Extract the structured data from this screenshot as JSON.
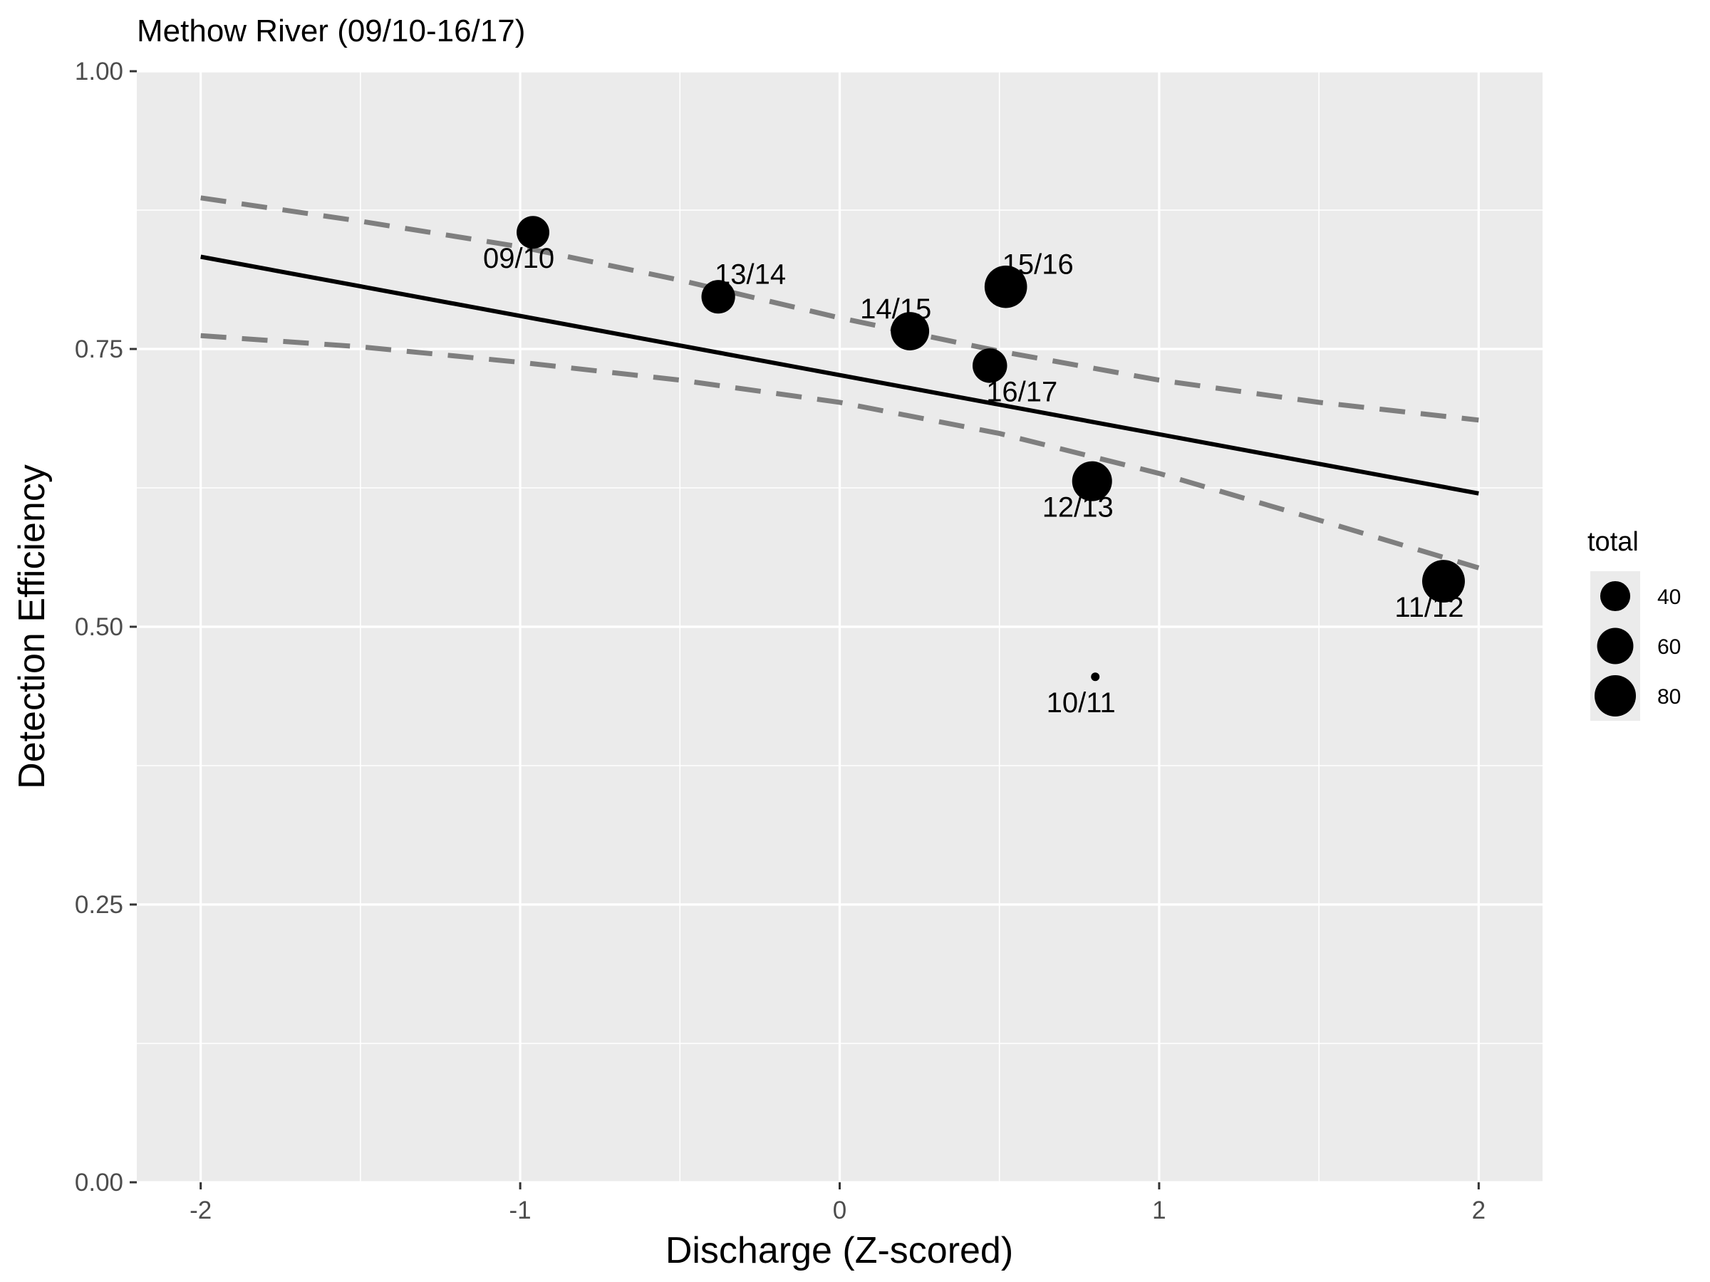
{
  "chart_data": {
    "type": "scatter",
    "title": "Methow River (09/10-16/17)",
    "xlabel": "Discharge (Z-scored)",
    "ylabel": "Detection Efficiency",
    "xlim": [
      -2.2,
      2.2
    ],
    "ylim": [
      0,
      1
    ],
    "x_ticks": [
      -2,
      -1,
      0,
      1,
      2
    ],
    "x_tick_labels": [
      "-2",
      "-1",
      "0",
      "1",
      "2"
    ],
    "y_ticks": [
      0,
      0.25,
      0.5,
      0.75,
      1
    ],
    "y_tick_labels": [
      "0.00",
      "0.25",
      "0.50",
      "0.75",
      "1.00"
    ],
    "x_minor": [
      -1.5,
      -0.5,
      0.5,
      1.5
    ],
    "y_minor": [
      0.125,
      0.375,
      0.625,
      0.875
    ],
    "grid": true,
    "points": [
      {
        "label": "09/10",
        "x": -0.96,
        "y": 0.855,
        "total": 48,
        "label_position": "below-left"
      },
      {
        "label": "13/14",
        "x": -0.38,
        "y": 0.797,
        "total": 51,
        "label_position": "above-right"
      },
      {
        "label": "14/15",
        "x": 0.22,
        "y": 0.766,
        "total": 68,
        "label_position": "above-left"
      },
      {
        "label": "15/16",
        "x": 0.52,
        "y": 0.806,
        "total": 85,
        "label_position": "above-right"
      },
      {
        "label": "16/17",
        "x": 0.47,
        "y": 0.735,
        "total": 54,
        "label_position": "below-right"
      },
      {
        "label": "12/13",
        "x": 0.79,
        "y": 0.631,
        "total": 74,
        "label_position": "below-left"
      },
      {
        "label": "11/12",
        "x": 1.89,
        "y": 0.541,
        "total": 86,
        "label_position": "below-left"
      },
      {
        "label": "10/11",
        "x": 0.8,
        "y": 0.455,
        "total": 10,
        "label_position": "below-left"
      }
    ],
    "fit_line": {
      "x": [
        -2,
        2
      ],
      "y": [
        0.833,
        0.62
      ]
    },
    "ci_upper": {
      "x": [
        -2,
        -1.5,
        -1,
        -0.5,
        0,
        0.5,
        1,
        1.5,
        2
      ],
      "y": [
        0.886,
        0.865,
        0.842,
        0.812,
        0.778,
        0.748,
        0.722,
        0.702,
        0.686
      ]
    },
    "ci_lower": {
      "x": [
        -2,
        -1.5,
        -1,
        -0.5,
        0,
        0.5,
        1,
        1.5,
        2
      ],
      "y": [
        0.762,
        0.752,
        0.738,
        0.722,
        0.702,
        0.674,
        0.638,
        0.596,
        0.553
      ]
    },
    "legend": {
      "title": "total",
      "placement": "right",
      "entries": [
        {
          "label": "40",
          "total": 40
        },
        {
          "label": "60",
          "total": 60
        },
        {
          "label": "80",
          "total": 80
        }
      ]
    },
    "colors": {
      "panel": "#ebebeb",
      "grid": "#ffffff",
      "points": "#000000",
      "fit": "#000000",
      "ci": "#7f7f7f",
      "tick_text": "#4d4d4d",
      "legend_key_bg": "#ebebeb"
    }
  }
}
